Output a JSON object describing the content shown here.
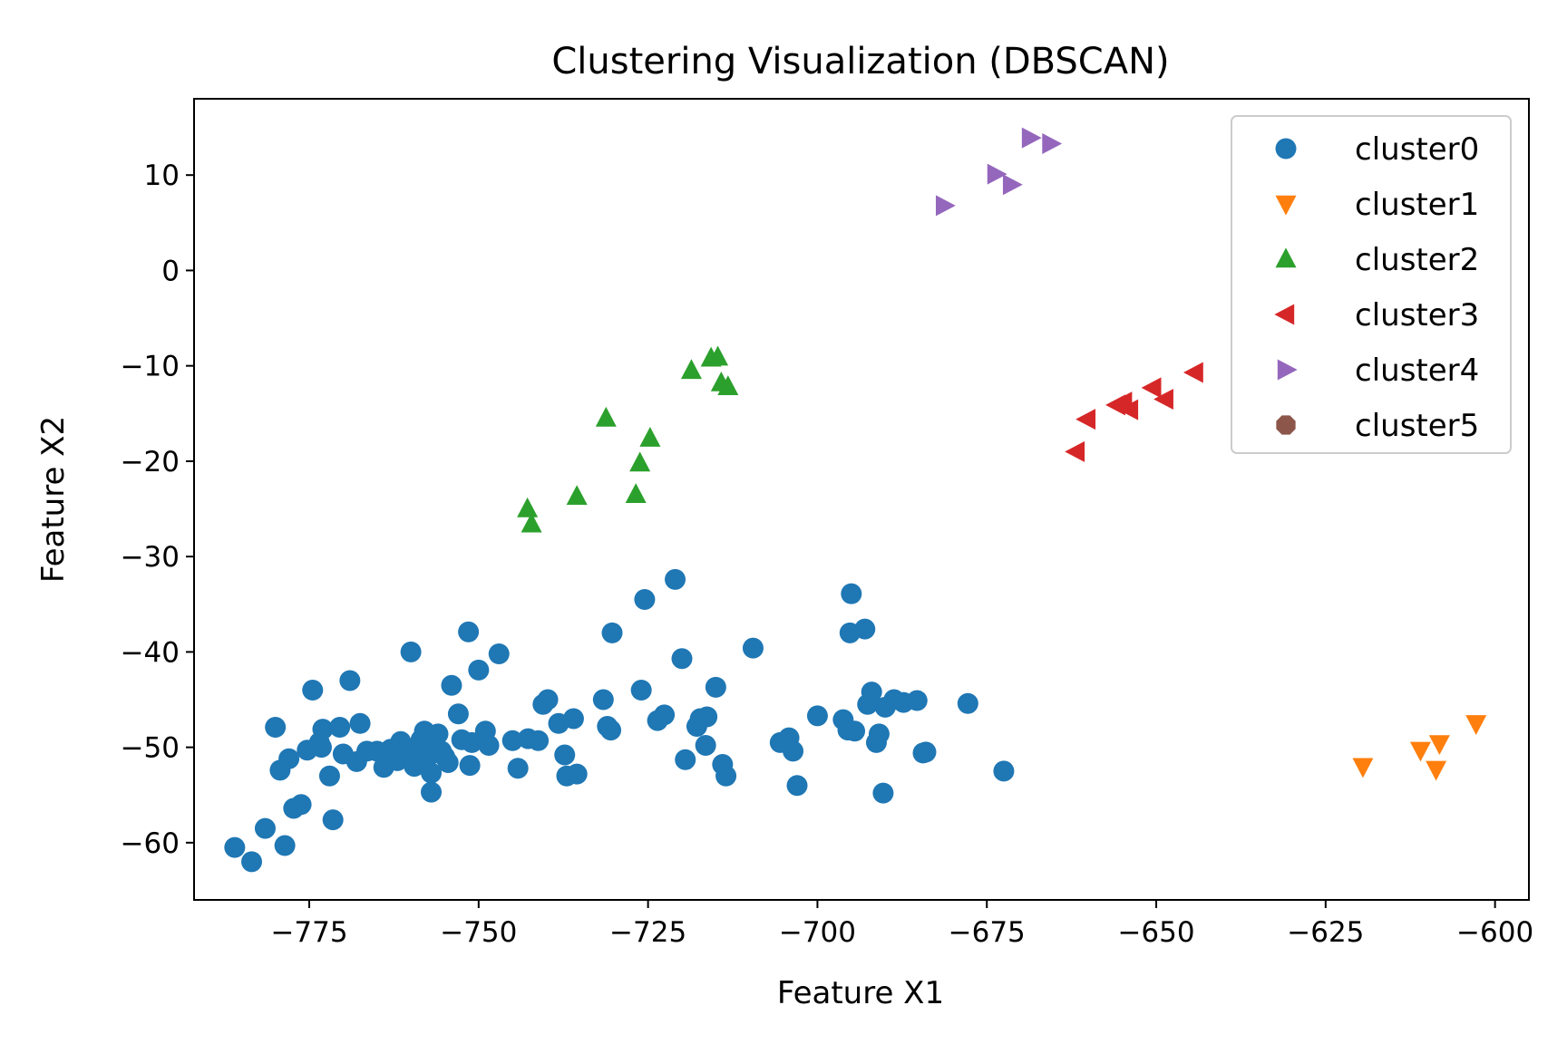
{
  "chart_data": {
    "type": "scatter",
    "title": "Clustering Visualization (DBSCAN)",
    "xlabel": "Feature X1",
    "ylabel": "Feature X2",
    "xlim": [
      -792,
      -595
    ],
    "ylim": [
      -66,
      18
    ],
    "xticks": [
      -775,
      -750,
      -725,
      -700,
      -675,
      -650,
      -625,
      -600
    ],
    "yticks": [
      -60,
      -50,
      -40,
      -30,
      -20,
      -10,
      0,
      10
    ],
    "xtick_labels": [
      "−775",
      "−750",
      "−725",
      "−700",
      "−675",
      "−650",
      "−625",
      "−600"
    ],
    "ytick_labels": [
      "−60",
      "−50",
      "−40",
      "−30",
      "−20",
      "−10",
      "0",
      "10"
    ],
    "grid": false,
    "legend_position": "top-right",
    "series": [
      {
        "name": "cluster0",
        "marker": "circle",
        "color": "#1f77b4",
        "points": [
          [
            -786,
            -60.5
          ],
          [
            -783.5,
            -62
          ],
          [
            -781.5,
            -58.5
          ],
          [
            -780,
            -47.9
          ],
          [
            -779.3,
            -52.4
          ],
          [
            -778.6,
            -60.3
          ],
          [
            -778,
            -51.2
          ],
          [
            -777.3,
            -56.4
          ],
          [
            -776.2,
            -56
          ],
          [
            -775.3,
            -50.3
          ],
          [
            -774.5,
            -44
          ],
          [
            -773.5,
            -49.5
          ],
          [
            -773.2,
            -50
          ],
          [
            -773,
            -48.1
          ],
          [
            -772,
            -53
          ],
          [
            -771.5,
            -57.6
          ],
          [
            -770.5,
            -47.9
          ],
          [
            -770,
            -50.7
          ],
          [
            -769,
            -43
          ],
          [
            -768,
            -51.5
          ],
          [
            -767.5,
            -47.5
          ],
          [
            -766.5,
            -50.4
          ],
          [
            -765,
            -50.4
          ],
          [
            -764,
            -52.1
          ],
          [
            -763,
            -50.2
          ],
          [
            -762,
            -51.4
          ],
          [
            -761.5,
            -49.4
          ],
          [
            -761,
            -50.9
          ],
          [
            -760,
            -40
          ],
          [
            -759.5,
            -52
          ],
          [
            -759,
            -50.1
          ],
          [
            -758.5,
            -49.2
          ],
          [
            -758,
            -48.3
          ],
          [
            -757.5,
            -51
          ],
          [
            -757,
            -52.7
          ],
          [
            -757,
            -54.7
          ],
          [
            -756.5,
            -49.1
          ],
          [
            -756,
            -48.6
          ],
          [
            -755.5,
            -50.4
          ],
          [
            -755,
            -51
          ],
          [
            -754.5,
            -51.6
          ],
          [
            -754,
            -43.5
          ],
          [
            -753,
            -46.5
          ],
          [
            -752.5,
            -49.2
          ],
          [
            -751.5,
            -37.9
          ],
          [
            -751.3,
            -51.9
          ],
          [
            -751,
            -49.5
          ],
          [
            -750,
            -41.9
          ],
          [
            -749,
            -48.3
          ],
          [
            -748.5,
            -49.8
          ],
          [
            -747,
            -40.2
          ],
          [
            -745,
            -49.3
          ],
          [
            -744.2,
            -52.2
          ],
          [
            -742.7,
            -49.1
          ],
          [
            -741.2,
            -49.3
          ],
          [
            -740.5,
            -45.5
          ],
          [
            -739.8,
            -45
          ],
          [
            -738.2,
            -47.5
          ],
          [
            -737.3,
            -50.8
          ],
          [
            -737,
            -53
          ],
          [
            -736,
            -47
          ],
          [
            -735.5,
            -52.8
          ],
          [
            -731.6,
            -45
          ],
          [
            -731,
            -47.8
          ],
          [
            -730.5,
            -48.2
          ],
          [
            -730.3,
            -38
          ],
          [
            -726,
            -44
          ],
          [
            -725.5,
            -34.5
          ],
          [
            -723.6,
            -47.2
          ],
          [
            -722.6,
            -46.6
          ],
          [
            -721,
            -32.4
          ],
          [
            -720,
            -40.7
          ],
          [
            -719.5,
            -51.3
          ],
          [
            -717.8,
            -47.8
          ],
          [
            -717.3,
            -47
          ],
          [
            -716.5,
            -49.8
          ],
          [
            -716.3,
            -46.8
          ],
          [
            -715,
            -43.7
          ],
          [
            -714,
            -51.8
          ],
          [
            -713.5,
            -53
          ],
          [
            -709.5,
            -39.6
          ],
          [
            -705.5,
            -49.5
          ],
          [
            -704.2,
            -49
          ],
          [
            -703.6,
            -50.4
          ],
          [
            -703,
            -54
          ],
          [
            -700,
            -46.7
          ],
          [
            -696.2,
            -47.1
          ],
          [
            -695.5,
            -48.2
          ],
          [
            -695.2,
            -38
          ],
          [
            -695,
            -33.9
          ],
          [
            -694.5,
            -48.3
          ],
          [
            -693,
            -37.6
          ],
          [
            -692.6,
            -45.5
          ],
          [
            -692,
            -44.2
          ],
          [
            -691.3,
            -49.5
          ],
          [
            -690.9,
            -48.6
          ],
          [
            -690.3,
            -54.8
          ],
          [
            -690,
            -45.8
          ],
          [
            -688.7,
            -45
          ],
          [
            -687.3,
            -45.3
          ],
          [
            -685.3,
            -45.1
          ],
          [
            -684.4,
            -50.6
          ],
          [
            -684,
            -50.5
          ],
          [
            -677.8,
            -45.4
          ],
          [
            -672.5,
            -52.5
          ]
        ]
      },
      {
        "name": "cluster1",
        "marker": "triangle-down",
        "color": "#ff7f0e",
        "points": [
          [
            -619.5,
            -52
          ],
          [
            -611,
            -50.3
          ],
          [
            -608.2,
            -49.6
          ],
          [
            -608.7,
            -52.3
          ],
          [
            -602.8,
            -47.5
          ]
        ]
      },
      {
        "name": "cluster2",
        "marker": "triangle-up",
        "color": "#2ca02c",
        "points": [
          [
            -742.8,
            -25
          ],
          [
            -742.2,
            -26.6
          ],
          [
            -735.5,
            -23.7
          ],
          [
            -731.2,
            -15.5
          ],
          [
            -726.8,
            -23.5
          ],
          [
            -726.2,
            -20.2
          ],
          [
            -724.7,
            -17.6
          ],
          [
            -718.6,
            -10.5
          ],
          [
            -715.7,
            -9.2
          ],
          [
            -714.7,
            -9.1
          ],
          [
            -714.2,
            -11.8
          ],
          [
            -713.2,
            -12.2
          ]
        ]
      },
      {
        "name": "cluster3",
        "marker": "triangle-left",
        "color": "#d62728",
        "points": [
          [
            -661.8,
            -19
          ],
          [
            -660.2,
            -15.6
          ],
          [
            -655.8,
            -14.1
          ],
          [
            -654.8,
            -13.8
          ],
          [
            -653.9,
            -14.6
          ],
          [
            -650.5,
            -12.3
          ],
          [
            -648.7,
            -13.5
          ],
          [
            -644.3,
            -10.7
          ]
        ]
      },
      {
        "name": "cluster4",
        "marker": "triangle-right",
        "color": "#9467bd",
        "points": [
          [
            -681.3,
            6.8
          ],
          [
            -673.7,
            10.1
          ],
          [
            -671.4,
            9
          ],
          [
            -668.6,
            13.9
          ],
          [
            -665.6,
            13.3
          ]
        ]
      },
      {
        "name": "cluster5",
        "marker": "octagon",
        "color": "#8c564b",
        "points": []
      }
    ]
  }
}
